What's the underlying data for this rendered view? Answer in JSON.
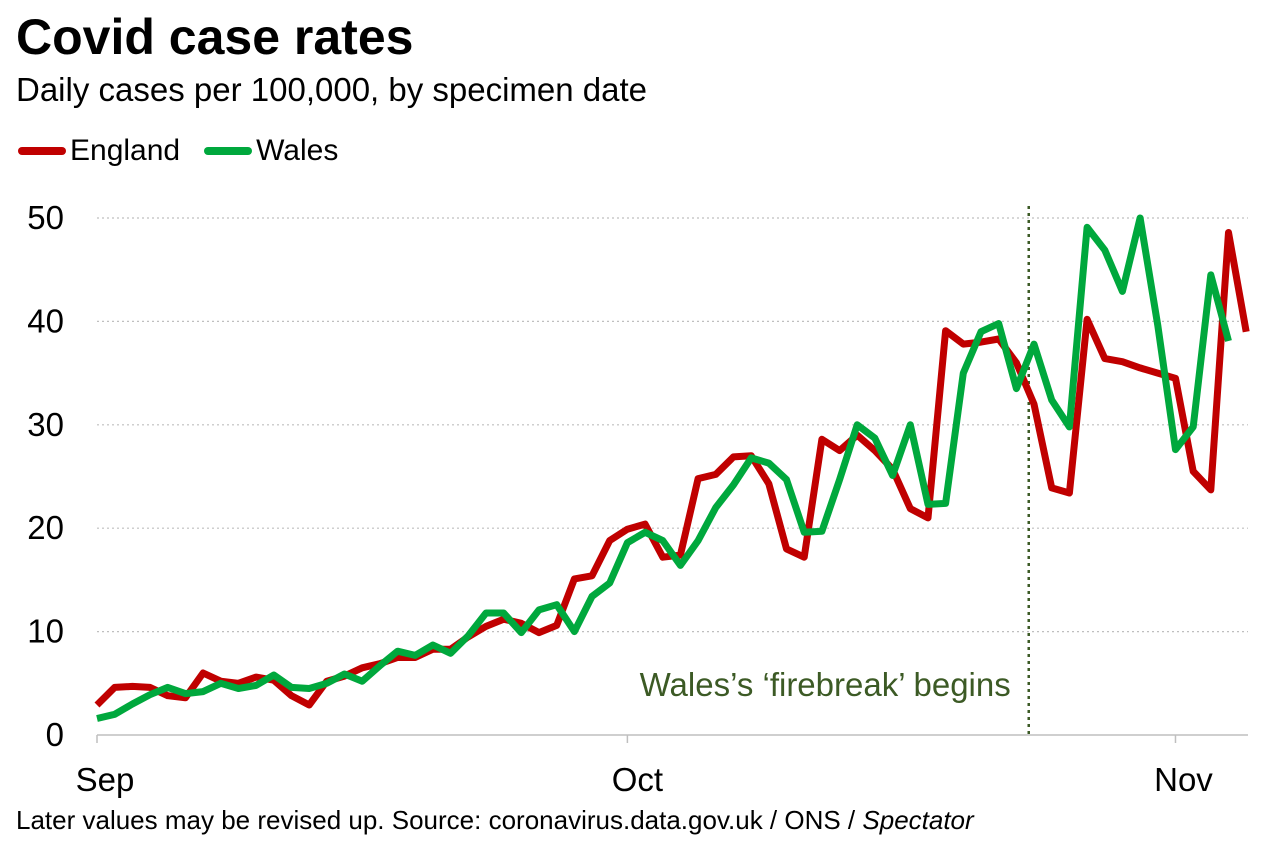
{
  "header": {
    "title": "Covid case rates",
    "subtitle": "Daily cases per 100,000, by specimen date"
  },
  "footer": {
    "text": "Later values may be revised up. Source: coronavirus.data.gov.uk / ONS / ",
    "italic": "Spectator"
  },
  "colors": {
    "england": "#c00000",
    "wales": "#00a83d",
    "annotation": "#3c5a25",
    "grid": "#bfbfbf"
  },
  "chart_data": {
    "type": "line",
    "title": "Covid case rates",
    "subtitle": "Daily cases per 100,000, by specimen date",
    "xlabel": "",
    "ylabel": "",
    "ylim": [
      0,
      50
    ],
    "y_ticks": [
      0,
      10,
      20,
      30,
      40,
      50
    ],
    "y_tick_labels": [
      "0",
      "10",
      "20",
      "30",
      "40",
      "50"
    ],
    "x_tick_labels": [
      "Sep",
      "Oct",
      "Nov"
    ],
    "x_tick_days": [
      0,
      30,
      61
    ],
    "grid": true,
    "legend": "top-left",
    "x_start": "1 Sep",
    "series": [
      {
        "name": "England",
        "values": [
          2.9,
          4.6,
          4.7,
          4.6,
          3.8,
          3.6,
          6.0,
          5.2,
          5.0,
          5.6,
          5.3,
          3.8,
          2.9,
          5.2,
          5.7,
          6.5,
          6.9,
          7.5,
          7.5,
          8.3,
          8.3,
          9.5,
          10.5,
          11.2,
          10.8,
          9.9,
          10.6,
          15.1,
          15.4,
          18.8,
          19.9,
          20.4,
          17.2,
          17.4,
          24.8,
          25.2,
          26.9,
          27.0,
          24.3,
          18.0,
          17.2,
          28.6,
          27.5,
          29.0,
          27.5,
          25.7,
          21.9,
          21.0,
          39.1,
          37.8,
          38.0,
          38.3,
          36.0,
          32.0,
          23.9,
          23.4,
          40.2,
          36.4,
          36.1,
          35.5,
          35.0,
          34.5,
          25.5,
          23.7,
          48.6,
          39.0
        ]
      },
      {
        "name": "Wales",
        "values": [
          1.6,
          2.0,
          3.0,
          3.9,
          4.6,
          4.0,
          4.2,
          5.0,
          4.5,
          4.8,
          5.8,
          4.6,
          4.5,
          5.0,
          5.9,
          5.2,
          6.7,
          8.1,
          7.7,
          8.7,
          7.9,
          9.6,
          11.8,
          11.8,
          9.9,
          12.1,
          12.6,
          10.0,
          13.4,
          14.7,
          18.6,
          19.6,
          18.8,
          16.4,
          18.8,
          22.0,
          24.2,
          26.8,
          26.3,
          24.7,
          19.6,
          19.7,
          24.7,
          30.0,
          28.7,
          25.1,
          30.0,
          22.3,
          22.4,
          35.0,
          39.0,
          39.8,
          33.5,
          37.8,
          32.4,
          29.8,
          49.1,
          46.9,
          42.9,
          50.0,
          39.6,
          27.6,
          29.8,
          44.5,
          38.1
        ]
      }
    ],
    "annotations": [
      {
        "label": "Wales’s ‘firebreak’ begins",
        "x_day": 52.7,
        "style": "vertical-dotted-line"
      }
    ]
  }
}
